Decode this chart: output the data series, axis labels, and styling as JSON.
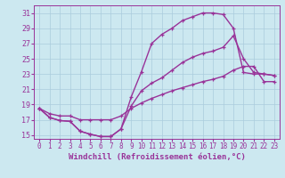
{
  "xlabel": "Windchill (Refroidissement éolien,°C)",
  "xlim": [
    -0.5,
    23.5
  ],
  "ylim": [
    14.5,
    32
  ],
  "xticks": [
    0,
    1,
    2,
    3,
    4,
    5,
    6,
    7,
    8,
    9,
    10,
    11,
    12,
    13,
    14,
    15,
    16,
    17,
    18,
    19,
    20,
    21,
    22,
    23
  ],
  "yticks": [
    15,
    17,
    19,
    21,
    23,
    25,
    27,
    29,
    31
  ],
  "bg_color": "#cce8f0",
  "line_color": "#993399",
  "grid_color": "#aaccdd",
  "line1_x": [
    0,
    1,
    2,
    3,
    4,
    5,
    6,
    7,
    8,
    9,
    10,
    11,
    12,
    13,
    14,
    15,
    16,
    17,
    18,
    19,
    20,
    21,
    22,
    23
  ],
  "line1_y": [
    18.5,
    17.3,
    16.9,
    16.8,
    15.5,
    15.1,
    14.8,
    14.8,
    15.8,
    20.0,
    23.3,
    27.0,
    28.2,
    29.0,
    30.0,
    30.5,
    31.0,
    31.0,
    30.8,
    29.0,
    23.2,
    23.0,
    23.0,
    22.8
  ],
  "line2_x": [
    0,
    1,
    2,
    3,
    4,
    5,
    6,
    7,
    8,
    9,
    10,
    11,
    12,
    13,
    14,
    15,
    16,
    17,
    18,
    19,
    20,
    21,
    22,
    23
  ],
  "line2_y": [
    18.5,
    17.3,
    16.9,
    16.8,
    15.5,
    15.1,
    14.8,
    14.8,
    15.8,
    18.8,
    20.8,
    21.8,
    22.5,
    23.5,
    24.5,
    25.2,
    25.7,
    26.0,
    26.5,
    28.0,
    25.0,
    23.2,
    23.0,
    22.8
  ],
  "line3_x": [
    0,
    1,
    2,
    3,
    4,
    5,
    6,
    7,
    8,
    9,
    10,
    11,
    12,
    13,
    14,
    15,
    16,
    17,
    18,
    19,
    20,
    21,
    22,
    23
  ],
  "line3_y": [
    18.5,
    17.8,
    17.5,
    17.5,
    17.0,
    17.0,
    17.0,
    17.0,
    17.5,
    18.5,
    19.2,
    19.8,
    20.3,
    20.8,
    21.2,
    21.6,
    22.0,
    22.3,
    22.7,
    23.5,
    24.0,
    24.0,
    22.0,
    22.0
  ],
  "xlabel_fontsize": 6.5,
  "tick_fontsize": 5.5,
  "line_width": 1.0,
  "marker_size": 3.5
}
